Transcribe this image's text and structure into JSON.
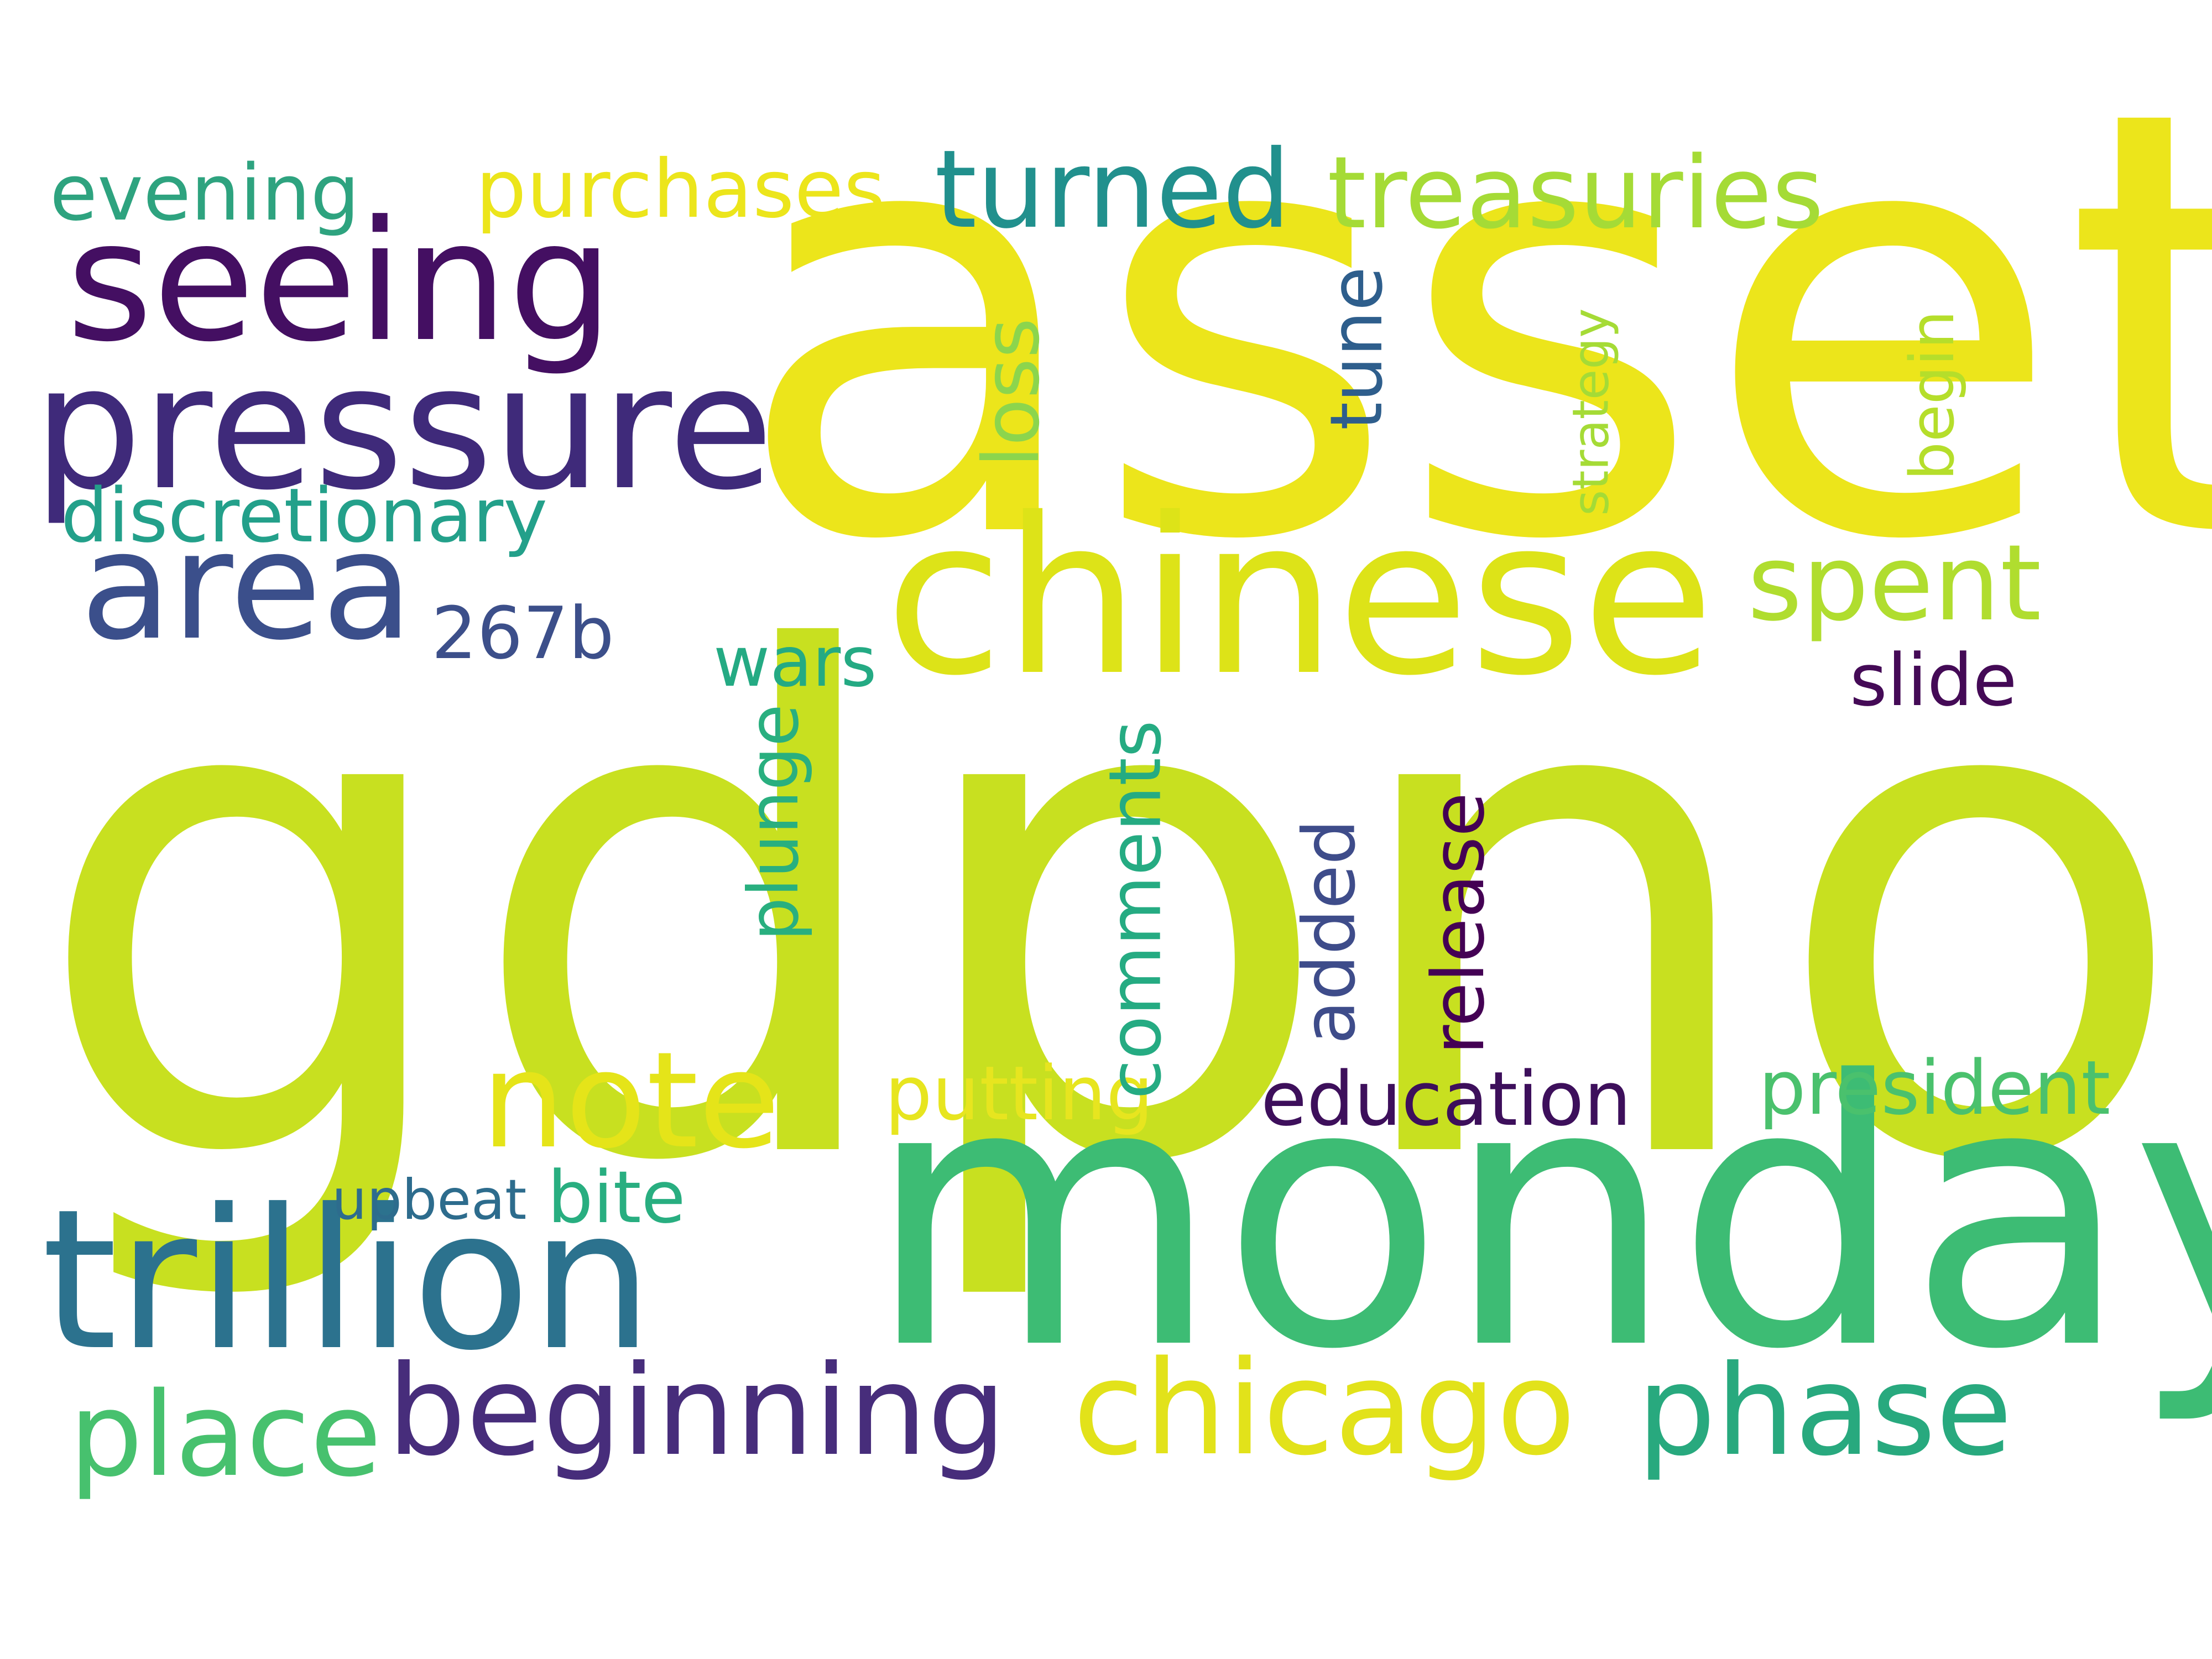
{
  "words": [
    {
      "text": "gdpnow",
      "color": "#c8e020"
    },
    {
      "text": "asset",
      "color": "#ece51b"
    },
    {
      "text": "monday",
      "color": "#3dbc74"
    },
    {
      "text": "chinese",
      "color": "#dde318"
    },
    {
      "text": "trillion",
      "color": "#2c728e"
    },
    {
      "text": "pressure",
      "color": "#3f2a7a"
    },
    {
      "text": "seeing",
      "color": "#440f62"
    },
    {
      "text": "area",
      "color": "#3b4f8b"
    },
    {
      "text": "note",
      "color": "#e5e419"
    },
    {
      "text": "chicago",
      "color": "#e2e21a"
    },
    {
      "text": "phase",
      "color": "#28a97e"
    },
    {
      "text": "beginning",
      "color": "#472d7b"
    },
    {
      "text": "place",
      "color": "#47c16e"
    },
    {
      "text": "turned",
      "color": "#21908d"
    },
    {
      "text": "treasuries",
      "color": "#a5db36"
    },
    {
      "text": "spent",
      "color": "#b0dd2f"
    },
    {
      "text": "purchases",
      "color": "#ece51b"
    },
    {
      "text": "evening",
      "color": "#2ea37f"
    },
    {
      "text": "discretionary",
      "color": "#23a08a"
    },
    {
      "text": "267b",
      "color": "#3c4f8a"
    },
    {
      "text": "wars",
      "color": "#24aa83"
    },
    {
      "text": "slide",
      "color": "#440a56"
    },
    {
      "text": "putting",
      "color": "#e7e51f"
    },
    {
      "text": "education",
      "color": "#3d0f5b"
    },
    {
      "text": "president",
      "color": "#4ac16d"
    },
    {
      "text": "upbeat",
      "color": "#2d6c8d"
    },
    {
      "text": "bite",
      "color": "#28ae80"
    },
    {
      "text": "loss",
      "color": "#8cd54d"
    },
    {
      "text": "tune",
      "color": "#2e5e8c"
    },
    {
      "text": "strategy",
      "color": "#a5db36"
    },
    {
      "text": "begin",
      "color": "#b5de2b"
    },
    {
      "text": "plunge",
      "color": "#29af7f"
    },
    {
      "text": "comments",
      "color": "#25ab82"
    },
    {
      "text": "added",
      "color": "#3e4c8a"
    },
    {
      "text": "release",
      "color": "#440154"
    }
  ]
}
